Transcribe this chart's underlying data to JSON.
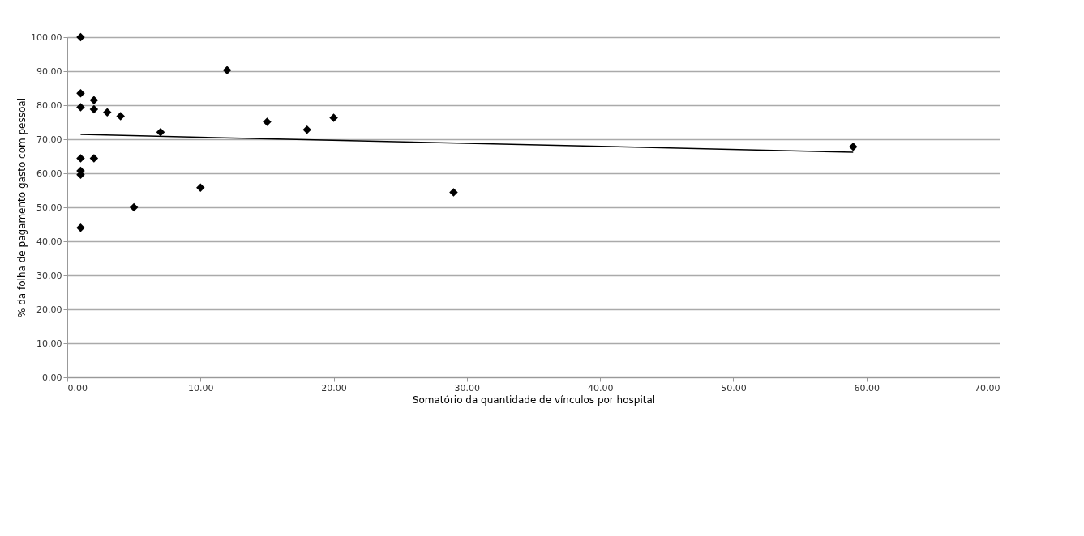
{
  "chart_data": {
    "type": "scatter",
    "xlabel": "Somatório da quantidade de vínculos por hospital",
    "ylabel": "% da folha de pagamento gasto com pessoal",
    "xlim": [
      0,
      70
    ],
    "ylim": [
      0,
      100
    ],
    "xticks": [
      {
        "value": 0,
        "label": "0.00"
      },
      {
        "value": 10,
        "label": "10.00"
      },
      {
        "value": 20,
        "label": "20.00"
      },
      {
        "value": 30,
        "label": "30.00"
      },
      {
        "value": 40,
        "label": "40.00"
      },
      {
        "value": 50,
        "label": "50.00"
      },
      {
        "value": 60,
        "label": "60.00"
      },
      {
        "value": 70,
        "label": "70.00"
      }
    ],
    "yticks": [
      {
        "value": 0,
        "label": "0.00"
      },
      {
        "value": 10,
        "label": "10.00"
      },
      {
        "value": 20,
        "label": "20.00"
      },
      {
        "value": 30,
        "label": "30.00"
      },
      {
        "value": 40,
        "label": "40.00"
      },
      {
        "value": 50,
        "label": "50.00"
      },
      {
        "value": 60,
        "label": "60.00"
      },
      {
        "value": 70,
        "label": "70.00"
      },
      {
        "value": 80,
        "label": "80.00"
      },
      {
        "value": 90,
        "label": "90.00"
      },
      {
        "value": 100,
        "label": "100.00"
      }
    ],
    "grid": "y",
    "marker": "diamond",
    "series": [
      {
        "color": "#000000",
        "x": [
          1,
          1,
          1,
          1,
          1,
          1,
          1,
          2,
          2,
          2,
          3,
          4,
          5,
          7,
          10,
          12,
          15,
          18,
          20,
          29,
          59
        ],
        "values": [
          100,
          83.5,
          79.4,
          64.4,
          60.7,
          59.6,
          44.0,
          81.5,
          78.8,
          64.4,
          77.9,
          76.8,
          50.0,
          72.1,
          55.8,
          90.3,
          75.1,
          72.8,
          76.3,
          54.4,
          67.8
        ]
      },
      {
        "type": "line",
        "color": "#000000",
        "marker": "none",
        "x": [
          1,
          59
        ],
        "values": [
          71.4,
          66.2
        ]
      }
    ]
  }
}
